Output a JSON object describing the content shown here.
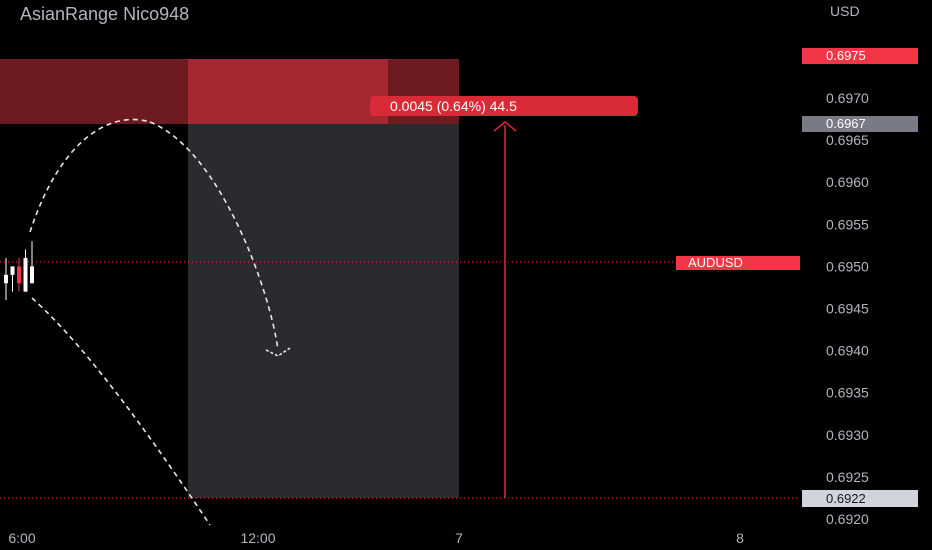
{
  "title": "AsianRange Nico948",
  "chart_data": {
    "type": "candlestick",
    "symbol": "AUDUSD",
    "currency": "USD",
    "y_ticks": [
      "0.6970",
      "0.6965",
      "0.6960",
      "0.6955",
      "0.6950",
      "0.6945",
      "0.6940",
      "0.6935",
      "0.6930",
      "0.6925",
      "0.6920"
    ],
    "x_ticks": [
      "6:00",
      "12:00",
      "7",
      "8"
    ],
    "price_tags": {
      "upper": "0.6975",
      "target_top": "0.6967",
      "current": "0.6950",
      "bottom": "0.6922"
    },
    "measure_label": "0.0045 (0.64%) 44.5",
    "candles": [
      {
        "open": 0.6948,
        "high": 0.6951,
        "low": 0.6946,
        "close": 0.6949
      },
      {
        "open": 0.6949,
        "high": 0.695,
        "low": 0.6947,
        "close": 0.695
      },
      {
        "open": 0.695,
        "high": 0.6951,
        "low": 0.6947,
        "close": 0.6948
      },
      {
        "open": 0.6947,
        "high": 0.6952,
        "low": 0.6947,
        "close": 0.6951
      },
      {
        "open": 0.6948,
        "high": 0.6953,
        "low": 0.6948,
        "close": 0.695
      }
    ],
    "colors": {
      "zone_red": "#b22833",
      "zone_gray": "#2a2b2e",
      "tag_red": "#f23645",
      "tag_gray": "#787b86",
      "tag_light": "#d1d4dc",
      "measure_red": "#d92a37"
    }
  }
}
